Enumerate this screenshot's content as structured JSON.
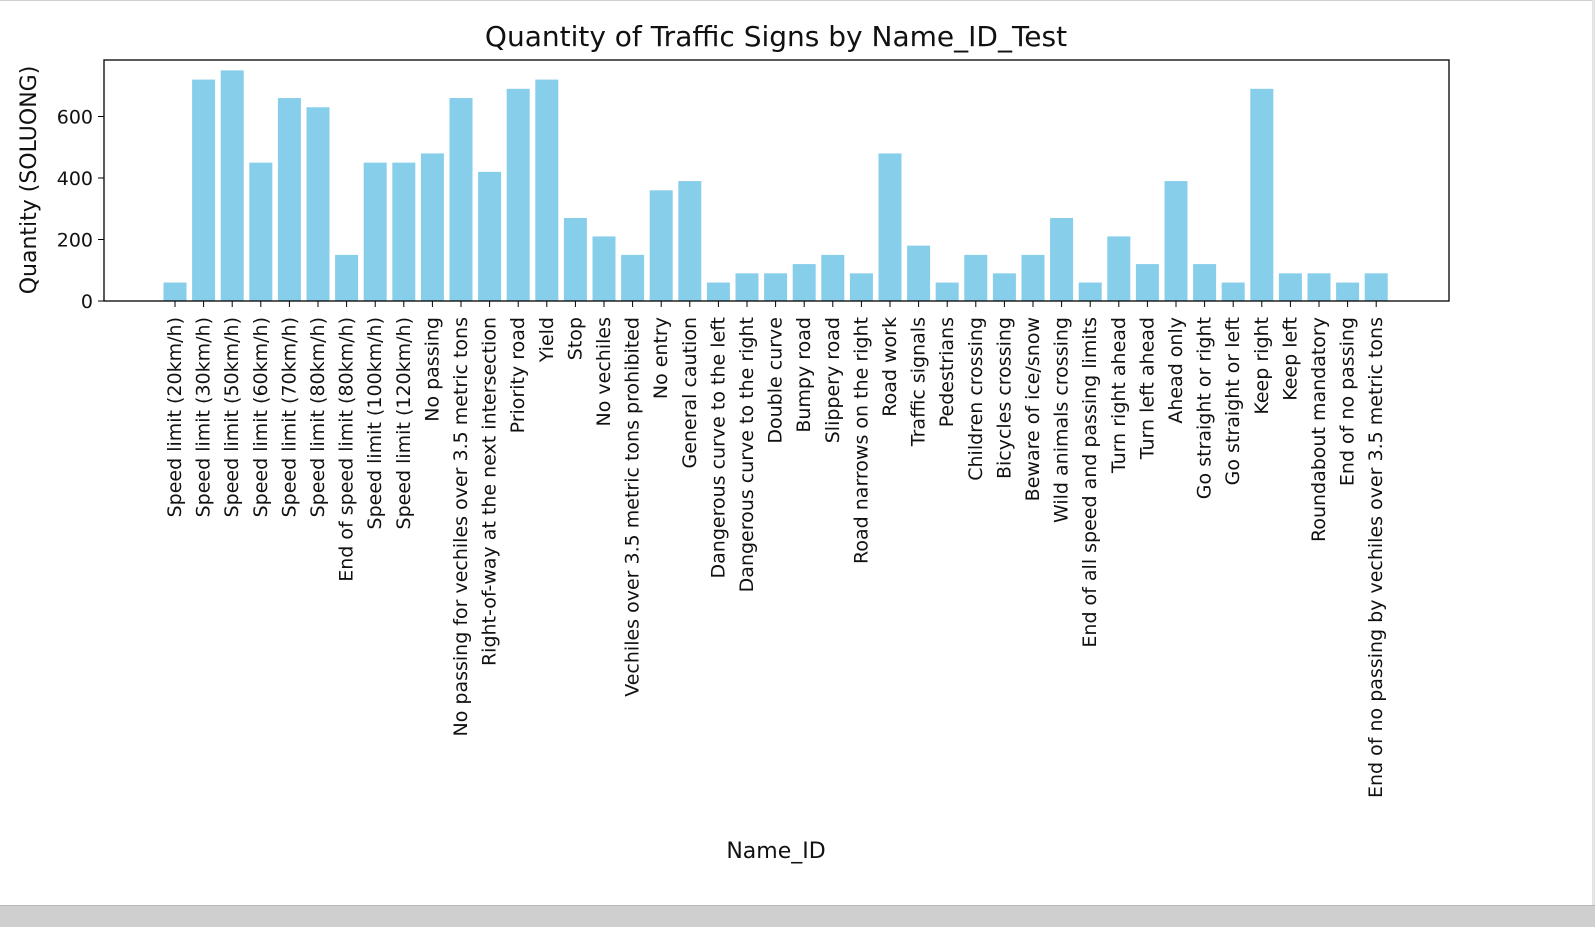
{
  "chart_data": {
    "type": "bar",
    "title": "Quantity of Traffic Signs by Name_ID_Test",
    "xlabel": "Name_ID",
    "ylabel": "Quantity (SOLUONG)",
    "ylim": [
      0,
      780
    ],
    "yticks": [
      0,
      200,
      400,
      600
    ],
    "grid": false,
    "bar_color": "#87ceeb",
    "categories": [
      "Speed limit (20km/h)",
      "Speed limit (30km/h)",
      "Speed limit (50km/h)",
      "Speed limit (60km/h)",
      "Speed limit (70km/h)",
      "Speed limit (80km/h)",
      "End of speed limit (80km/h)",
      "Speed limit (100km/h)",
      "Speed limit (120km/h)",
      "No passing",
      "No passing for vechiles over 3.5 metric tons",
      "Right-of-way at the next intersection",
      "Priority road",
      "Yield",
      "Stop",
      "No vechiles",
      "Vechiles over 3.5 metric tons prohibited",
      "No entry",
      "General caution",
      "Dangerous curve to the left",
      "Dangerous curve to the right",
      "Double curve",
      "Bumpy road",
      "Slippery road",
      "Road narrows on the right",
      "Road work",
      "Traffic signals",
      "Pedestrians",
      "Children crossing",
      "Bicycles crossing",
      "Beware of ice/snow",
      "Wild animals crossing",
      "End of all speed and passing limits",
      "Turn right ahead",
      "Turn left ahead",
      "Ahead only",
      "Go straight or right",
      "Go straight or left",
      "Keep right",
      "Keep left",
      "Roundabout mandatory",
      "End of no passing",
      "End of no passing by vechiles over 3.5 metric tons"
    ],
    "values": [
      60,
      720,
      750,
      450,
      660,
      630,
      150,
      450,
      450,
      480,
      660,
      420,
      690,
      720,
      270,
      210,
      150,
      360,
      390,
      60,
      90,
      90,
      120,
      150,
      90,
      480,
      180,
      60,
      150,
      90,
      150,
      270,
      60,
      210,
      120,
      390,
      120,
      60,
      690,
      90,
      90,
      60,
      90
    ]
  }
}
